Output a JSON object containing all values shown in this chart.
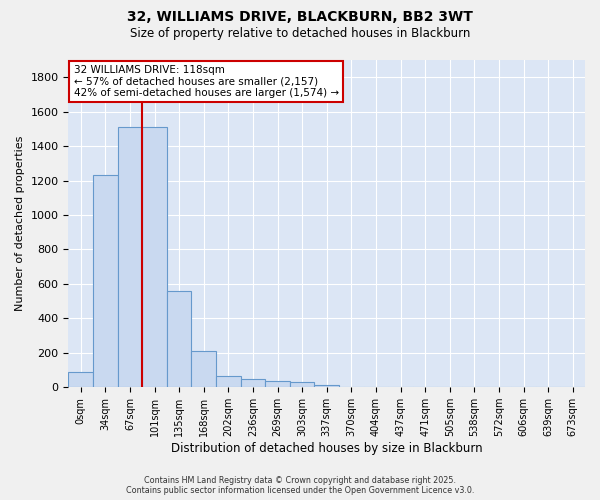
{
  "title_line1": "32, WILLIAMS DRIVE, BLACKBURN, BB2 3WT",
  "title_line2": "Size of property relative to detached houses in Blackburn",
  "xlabel": "Distribution of detached houses by size in Blackburn",
  "ylabel": "Number of detached properties",
  "bar_values": [
    90,
    1235,
    1510,
    1510,
    560,
    210,
    65,
    45,
    35,
    28,
    12,
    4,
    2,
    1,
    0,
    0,
    0,
    0,
    0,
    0,
    0
  ],
  "bar_labels": [
    "0sqm",
    "34sqm",
    "67sqm",
    "101sqm",
    "135sqm",
    "168sqm",
    "202sqm",
    "236sqm",
    "269sqm",
    "303sqm",
    "337sqm",
    "370sqm",
    "404sqm",
    "437sqm",
    "471sqm",
    "505sqm",
    "538sqm",
    "572sqm",
    "606sqm",
    "639sqm",
    "673sqm"
  ],
  "bar_color": "#c9d9f0",
  "bar_edge_color": "#6699cc",
  "background_color": "#dce6f5",
  "grid_color": "#ffffff",
  "annotation_box_color": "#cc0000",
  "annotation_line": "32 WILLIAMS DRIVE: 118sqm",
  "annotation_pct1": "← 57% of detached houses are smaller (2,157)",
  "annotation_pct2": "42% of semi-detached houses are larger (1,574) →",
  "vline_color": "#cc0000",
  "ylim": [
    0,
    1900
  ],
  "yticks": [
    0,
    200,
    400,
    600,
    800,
    1000,
    1200,
    1400,
    1600,
    1800
  ],
  "footnote1": "Contains HM Land Registry data © Crown copyright and database right 2025.",
  "footnote2": "Contains public sector information licensed under the Open Government Licence v3.0."
}
